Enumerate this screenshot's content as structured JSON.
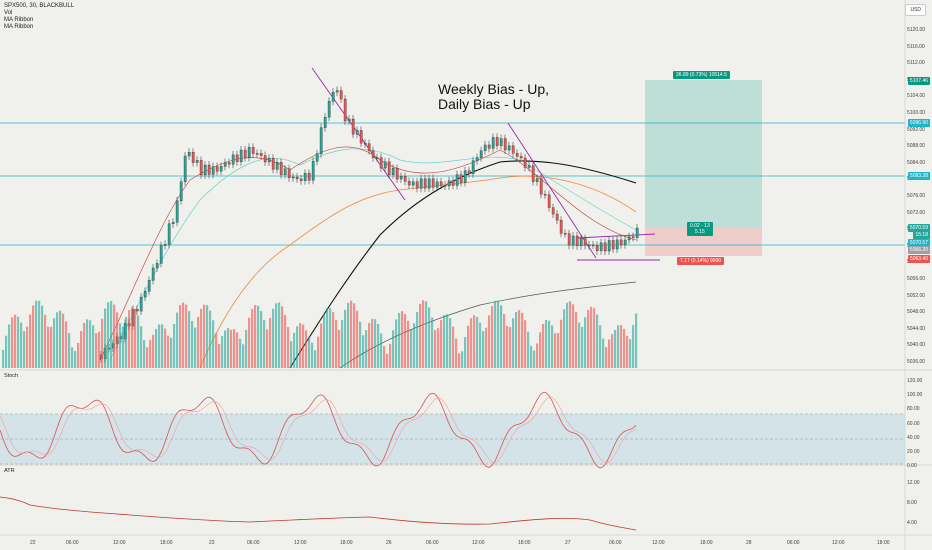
{
  "legend": {
    "symbol": "SPX500, 30, BLACKBULL",
    "vol": "Vol",
    "ma1": "MA Ribbon",
    "ma2": "MA Ribbon"
  },
  "currency_button": "USD",
  "annotation": {
    "line1": "Weekly Bias - Up,",
    "line2": "Daily Bias - Up"
  },
  "panels": {
    "stoch": "Stoch",
    "atr": "ATR"
  },
  "price_axis": [
    "5120.00",
    "5116.00",
    "5112.00",
    "5108.00",
    "5104.00",
    "5100.00",
    "5092.00",
    "5088.00",
    "5084.00",
    "5080.00",
    "5076.00",
    "5072.00",
    "5068.00",
    "5064.00",
    "5060.00",
    "5056.00",
    "5052.00",
    "5048.00",
    "5044.00",
    "5040.00",
    "5036.00"
  ],
  "stoch_axis": [
    "120.00",
    "100.00",
    "80.00",
    "60.00",
    "40.00",
    "20.00",
    "0.00"
  ],
  "atr_axis": [
    "12.00",
    "8.00",
    "4.00"
  ],
  "time_axis": [
    "22",
    "06:00",
    "12:00",
    "18:00",
    "23",
    "06:00",
    "12:00",
    "18:00",
    "26",
    "06:00",
    "12:00",
    "18:00",
    "27",
    "06:00",
    "12:00",
    "18:00",
    "28",
    "06:00",
    "12:00",
    "18:00"
  ],
  "price_tags": {
    "t1": "5107.46",
    "t2": "5096.90",
    "t3": "5083.38",
    "t4": "5070.59",
    "t4b": "15:18",
    "t5": "5070.57",
    "t6": "5066.20",
    "t7": "5063.40"
  },
  "position": {
    "target": "36.89 (0.73%) 10514.5",
    "mid1": "0.02 - 13",
    "mid2": "5.15",
    "stop": "7.17 (0.14%) 9900"
  },
  "colors": {
    "up": "#26a69a",
    "down": "#ef5350",
    "hline": "#22b5c9",
    "profit": "#26a69a",
    "loss": "#ef5350"
  }
}
